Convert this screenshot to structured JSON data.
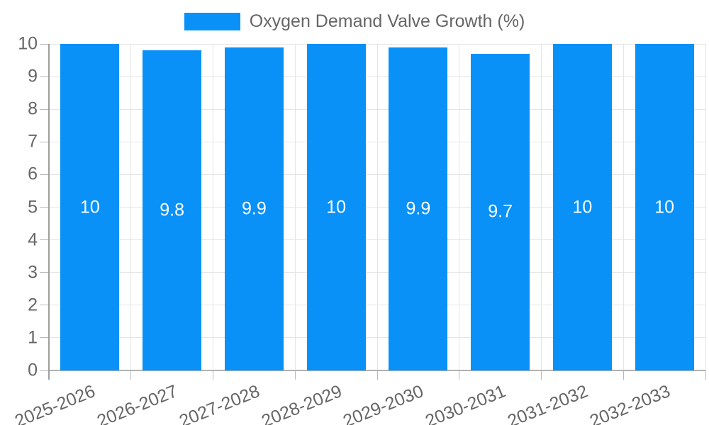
{
  "chart_data": {
    "type": "bar",
    "title": "Oxygen Demand Valve Growth (%)",
    "categories": [
      "2025-2026",
      "2026-2027",
      "2027-2028",
      "2028-2029",
      "2029-2030",
      "2030-2031",
      "2031-2032",
      "2032-2033"
    ],
    "values": [
      10,
      9.8,
      9.9,
      10,
      9.9,
      9.7,
      10,
      10
    ],
    "value_labels": [
      "10",
      "9.8",
      "9.9",
      "10",
      "9.9",
      "9.7",
      "10",
      "10"
    ],
    "xlabel": "",
    "ylabel": "",
    "ylim": [
      0,
      10
    ],
    "yticks": [
      0,
      1,
      2,
      3,
      4,
      5,
      6,
      7,
      8,
      9,
      10
    ],
    "grid": true,
    "legend_position": "top",
    "colors": {
      "bar": "#0991f7",
      "grid": "#e5e5e5",
      "axis_line": "#9e9e9e",
      "baseline": "#b1b1b1",
      "tick_text": "#666666",
      "value_text": "#ffffff",
      "background": "#ffffff"
    }
  }
}
